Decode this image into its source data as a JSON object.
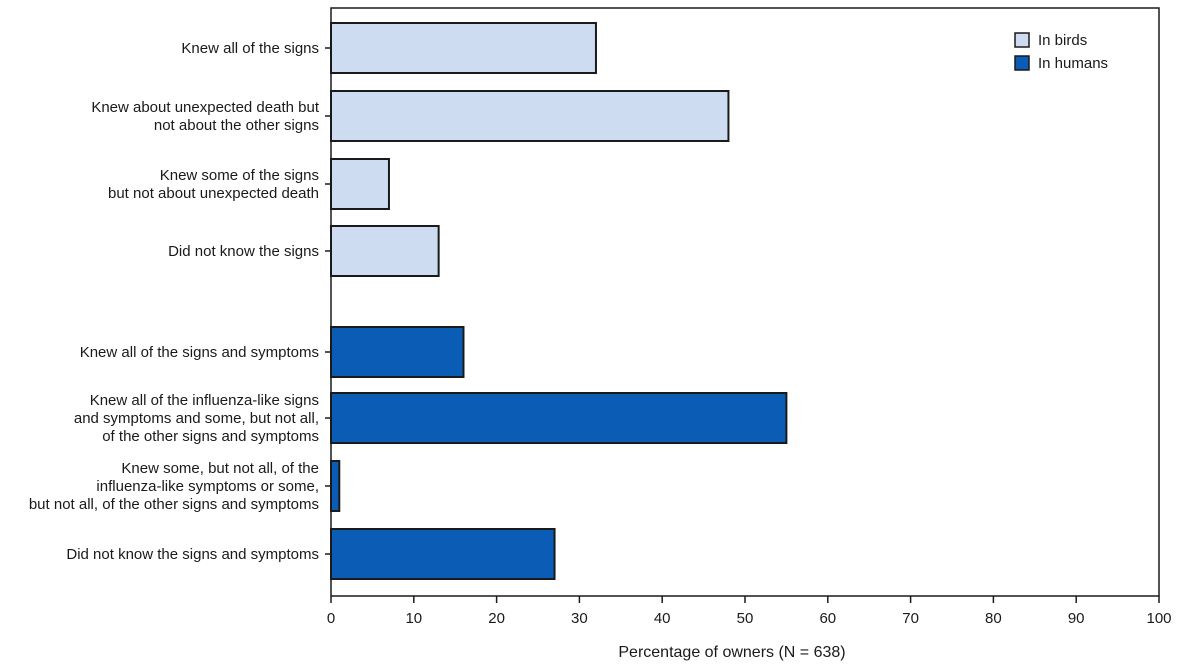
{
  "chart_data": {
    "type": "bar",
    "orientation": "horizontal",
    "xlabel": "Percentage of owners (N = 638)",
    "xlim": [
      0,
      100
    ],
    "xticks": [
      0,
      10,
      20,
      30,
      40,
      50,
      60,
      70,
      80,
      90,
      100
    ],
    "grid": false,
    "legend_position": "top-right",
    "series": [
      {
        "name": "In birds",
        "color": "#cddcf1",
        "categories": [
          [
            "Knew all of the signs"
          ],
          [
            "Knew about unexpected death but",
            "not about the other signs"
          ],
          [
            "Knew some of the signs",
            "but not about unexpected death"
          ],
          [
            "Did not know the signs"
          ]
        ],
        "values": [
          32,
          48,
          7,
          13
        ]
      },
      {
        "name": "In humans",
        "color": "#0b5cb5",
        "categories": [
          [
            "Knew all of the signs and symptoms"
          ],
          [
            "Knew all of the influenza-like signs",
            "and symptoms and some, but not all,",
            "of the other signs and symptoms"
          ],
          [
            "Knew some, but not all, of the",
            "influenza-like symptoms or some,",
            "but not all, of the other signs and symptoms"
          ],
          [
            "Did not know the signs and symptoms"
          ]
        ],
        "values": [
          16,
          55,
          1,
          27
        ]
      }
    ]
  }
}
